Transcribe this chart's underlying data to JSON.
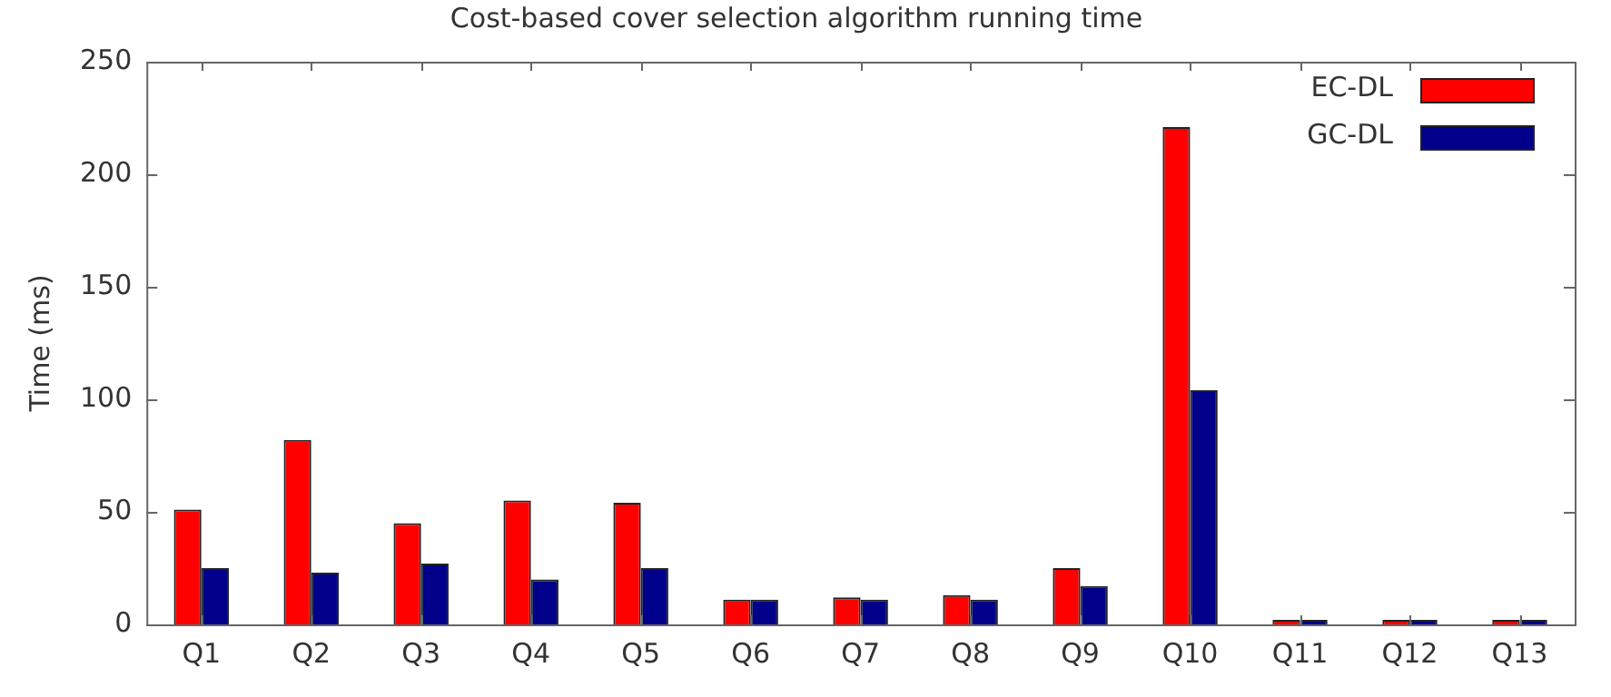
{
  "chart_data": {
    "type": "bar",
    "title": "Cost-based cover selection algorithm running time",
    "ylabel": "Time (ms)",
    "categories": [
      "Q1",
      "Q2",
      "Q3",
      "Q4",
      "Q5",
      "Q6",
      "Q7",
      "Q8",
      "Q9",
      "Q10",
      "Q11",
      "Q12",
      "Q13"
    ],
    "series": [
      {
        "name": "EC-DL",
        "color": "#ff0000",
        "values": [
          51,
          82,
          45,
          55,
          54,
          11,
          12,
          13,
          25,
          221,
          2,
          2,
          2
        ]
      },
      {
        "name": "GC-DL",
        "color": "#00008b",
        "values": [
          25,
          23,
          27,
          20,
          25,
          11,
          11,
          11,
          17,
          104,
          2,
          2,
          2
        ]
      }
    ],
    "ylim": [
      0,
      250
    ],
    "yticks": [
      0,
      50,
      100,
      150,
      200,
      250
    ],
    "grid": false,
    "legend": "top right"
  }
}
